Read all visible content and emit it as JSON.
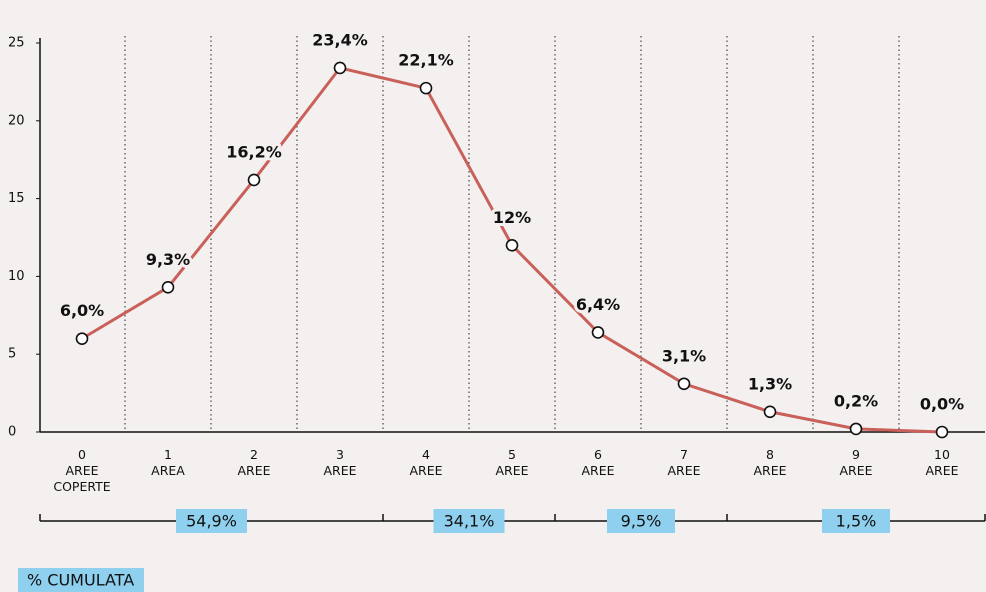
{
  "chart_data": {
    "type": "line",
    "categories": [
      [
        "0",
        "AREE",
        "COPERTE"
      ],
      [
        "1",
        "AREA"
      ],
      [
        "2",
        "AREE"
      ],
      [
        "3",
        "AREE"
      ],
      [
        "4",
        "AREE"
      ],
      [
        "5",
        "AREE"
      ],
      [
        "6",
        "AREE"
      ],
      [
        "7",
        "AREE"
      ],
      [
        "8",
        "AREE"
      ],
      [
        "9",
        "AREE"
      ],
      [
        "10",
        "AREE"
      ]
    ],
    "values": [
      6.0,
      9.3,
      16.2,
      23.4,
      22.1,
      12,
      6.4,
      3.1,
      1.3,
      0.2,
      0.0
    ],
    "value_labels": [
      "6,0%",
      "9,3%",
      "16,2%",
      "23,4%",
      "22,1%",
      "12%",
      "6,4%",
      "3,1%",
      "1,3%",
      "0,2%",
      "0,0%"
    ],
    "color": "#c9605a",
    "ylim": [
      0,
      25
    ],
    "yticks": [
      0,
      5,
      10,
      15,
      20,
      25
    ],
    "cumulative": {
      "label": "% CUMULATA",
      "color": "#8fd0ee",
      "groups": [
        {
          "value": 54.9,
          "label": "54,9%",
          "span": [
            0,
            3
          ]
        },
        {
          "value": 34.1,
          "label": "34,1%",
          "span": [
            4,
            5
          ]
        },
        {
          "value": 9.5,
          "label": "9,5%",
          "span": [
            6,
            7
          ]
        },
        {
          "value": 1.5,
          "label": "1,5%",
          "span": [
            8,
            10
          ]
        }
      ]
    }
  }
}
